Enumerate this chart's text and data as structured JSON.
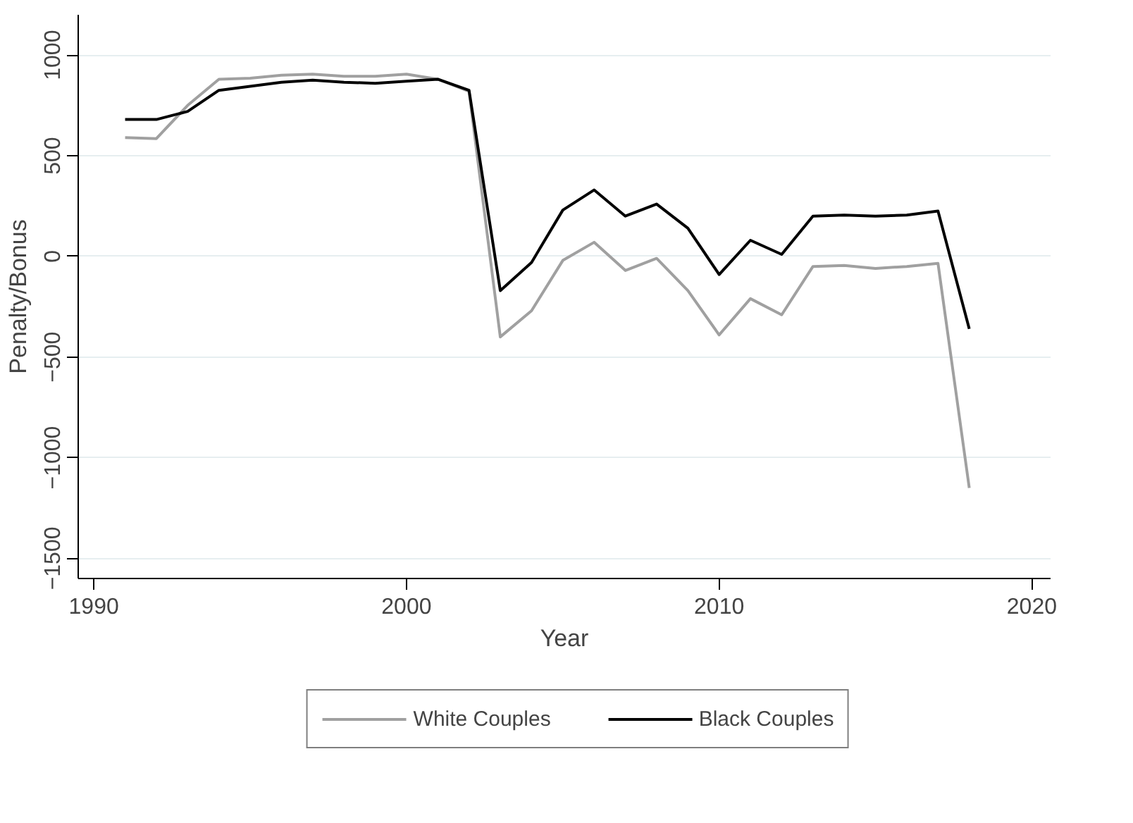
{
  "chart_data": {
    "type": "line",
    "xlabel": "Year",
    "ylabel": "Penalty/Bonus",
    "x": [
      1991,
      1992,
      1993,
      1994,
      1995,
      1996,
      1997,
      1998,
      1999,
      2000,
      2001,
      2002,
      2003,
      2004,
      2005,
      2006,
      2007,
      2008,
      2009,
      2010,
      2011,
      2012,
      2013,
      2014,
      2015,
      2016,
      2017,
      2018
    ],
    "series": [
      {
        "name": "White Couples",
        "color": "#a0a0a0",
        "values": [
          590,
          585,
          750,
          880,
          885,
          900,
          905,
          895,
          895,
          905,
          880,
          820,
          -400,
          -270,
          -20,
          70,
          -70,
          -10,
          -170,
          -390,
          -210,
          -290,
          -50,
          -45,
          -60,
          -50,
          -35,
          -1150
        ]
      },
      {
        "name": "Black Couples",
        "color": "#000000",
        "values": [
          680,
          680,
          720,
          825,
          845,
          865,
          875,
          865,
          860,
          870,
          880,
          825,
          -170,
          -30,
          230,
          330,
          200,
          260,
          140,
          -90,
          80,
          10,
          200,
          205,
          200,
          205,
          225,
          -360
        ]
      }
    ],
    "xlim": [
      1989.5,
      2020.6
    ],
    "ylim": [
      -1600,
      1200
    ],
    "xticks": [
      1990,
      2000,
      2010,
      2020
    ],
    "yticks": [
      -1500,
      -1000,
      -500,
      0,
      500,
      1000
    ],
    "grid": "y",
    "legend": "bottom",
    "marker": "none",
    "line_style": "solid"
  }
}
